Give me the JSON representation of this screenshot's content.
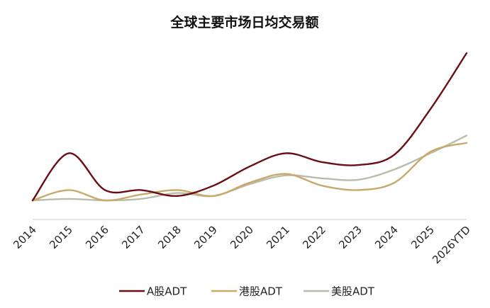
{
  "chart_data": {
    "type": "line",
    "title": "全球主要市场日均交易额",
    "xlabel": "",
    "ylabel": "",
    "categories": [
      "2014",
      "2015",
      "2016",
      "2017",
      "2018",
      "2019",
      "2020",
      "2021",
      "2022",
      "2023",
      "2024",
      "2025",
      "2026YTD"
    ],
    "ylim": [
      0,
      100
    ],
    "grid": false,
    "legend_position": "bottom",
    "series": [
      {
        "name": "A股ADT",
        "color": "#6b0d14",
        "values": [
          0,
          32,
          7,
          7,
          3,
          10,
          23,
          32,
          26,
          24,
          31,
          62,
          100
        ]
      },
      {
        "name": "港股ADT",
        "color": "#c9a86a",
        "values": [
          0,
          7,
          0,
          4,
          7,
          3,
          12,
          18,
          10,
          7,
          12,
          33,
          39
        ]
      },
      {
        "name": "美股ADT",
        "color": "#b9bcaa",
        "values": [
          0,
          1,
          0,
          1,
          5,
          3,
          11,
          17,
          15,
          14,
          21,
          32,
          44
        ]
      }
    ]
  }
}
